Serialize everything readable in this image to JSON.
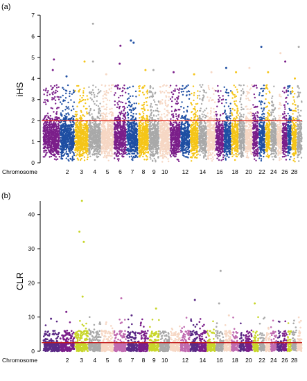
{
  "panels": [
    {
      "label": "(a)"
    },
    {
      "label": "(b)"
    }
  ],
  "chart_data": [
    {
      "type": "scatter",
      "title": "",
      "xlabel": "Chromosome",
      "ylabel": "iHS",
      "ylim": [
        0,
        7
      ],
      "yticks": [
        0,
        1,
        2,
        3,
        4,
        5,
        6,
        7
      ],
      "xtick_labels": [
        "Chromosome",
        "2",
        "3",
        "4",
        "5",
        "6",
        "7",
        "8",
        "9",
        "10",
        "12",
        "14",
        "16",
        "18",
        "20",
        "22",
        "24",
        "26",
        "28"
      ],
      "chromosomes": [
        1,
        2,
        3,
        4,
        5,
        6,
        7,
        8,
        9,
        10,
        11,
        12,
        13,
        14,
        15,
        16,
        17,
        18,
        19,
        20,
        21,
        22,
        23,
        24,
        25,
        26,
        27,
        28,
        29
      ],
      "chromosome_colors": [
        "#7b1f8a",
        "#1f4fa3",
        "#f5c518",
        "#a9a9a9",
        "#f6d7c4"
      ],
      "threshold": {
        "value": 2.0,
        "color": "#e2261d"
      },
      "peaks": [
        {
          "chromosome": 1,
          "y": 4.9
        },
        {
          "chromosome": 1,
          "y": 4.4
        },
        {
          "chromosome": 2,
          "y": 4.1
        },
        {
          "chromosome": 3,
          "y": 4.8
        },
        {
          "chromosome": 4,
          "y": 6.6
        },
        {
          "chromosome": 4,
          "y": 4.8
        },
        {
          "chromosome": 5,
          "y": 4.2
        },
        {
          "chromosome": 6,
          "y": 5.55
        },
        {
          "chromosome": 6,
          "y": 4.7
        },
        {
          "chromosome": 7,
          "y": 5.8
        },
        {
          "chromosome": 7,
          "y": 5.7
        },
        {
          "chromosome": 8,
          "y": 4.4
        },
        {
          "chromosome": 9,
          "y": 4.4
        },
        {
          "chromosome": 11,
          "y": 4.3
        },
        {
          "chromosome": 13,
          "y": 4.2
        },
        {
          "chromosome": 15,
          "y": 4.3
        },
        {
          "chromosome": 17,
          "y": 4.5
        },
        {
          "chromosome": 18,
          "y": 4.3
        },
        {
          "chromosome": 20,
          "y": 4.5
        },
        {
          "chromosome": 22,
          "y": 5.5
        },
        {
          "chromosome": 23,
          "y": 4.3
        },
        {
          "chromosome": 25,
          "y": 5.2
        },
        {
          "chromosome": 26,
          "y": 4.8
        },
        {
          "chromosome": 28,
          "y": 4.0
        },
        {
          "chromosome": 29,
          "y": 5.5
        }
      ]
    },
    {
      "type": "scatter",
      "title": "",
      "xlabel": "Chromosome",
      "ylabel": "CLR",
      "ylim": [
        0,
        44
      ],
      "yticks": [
        0,
        10,
        20,
        30,
        40
      ],
      "xtick_labels": [
        "Chromosome",
        "2",
        "3",
        "4",
        "5",
        "6",
        "7",
        "8",
        "9",
        "10",
        "12",
        "14",
        "16",
        "18",
        "20",
        "22",
        "24",
        "26",
        "28"
      ],
      "chromosomes": [
        1,
        2,
        3,
        4,
        5,
        6,
        7,
        8,
        9,
        10,
        11,
        12,
        13,
        14,
        15,
        16,
        17,
        18,
        19,
        20,
        21,
        22,
        23,
        24,
        25,
        26,
        27,
        28,
        29
      ],
      "chromosome_colors": [
        "#5b2a86",
        "#7b1f8a",
        "#c8d62b",
        "#a9a9a9",
        "#f6d7c4",
        "#c06bb0"
      ],
      "threshold": {
        "value": 2.5,
        "color": "#c21515"
      },
      "peaks": [
        {
          "chromosome": 1,
          "y": 9.5
        },
        {
          "chromosome": 2,
          "y": 11.5
        },
        {
          "chromosome": 3,
          "y": 44
        },
        {
          "chromosome": 3,
          "y": 35
        },
        {
          "chromosome": 3,
          "y": 32
        },
        {
          "chromosome": 3,
          "y": 16
        },
        {
          "chromosome": 6,
          "y": 15.5
        },
        {
          "chromosome": 7,
          "y": 10.5
        },
        {
          "chromosome": 9,
          "y": 12.5
        },
        {
          "chromosome": 13,
          "y": 15
        },
        {
          "chromosome": 16,
          "y": 23.5
        },
        {
          "chromosome": 16,
          "y": 14
        },
        {
          "chromosome": 21,
          "y": 14
        },
        {
          "chromosome": 17,
          "y": 10.5
        },
        {
          "chromosome": 29,
          "y": 8.5
        }
      ]
    }
  ]
}
